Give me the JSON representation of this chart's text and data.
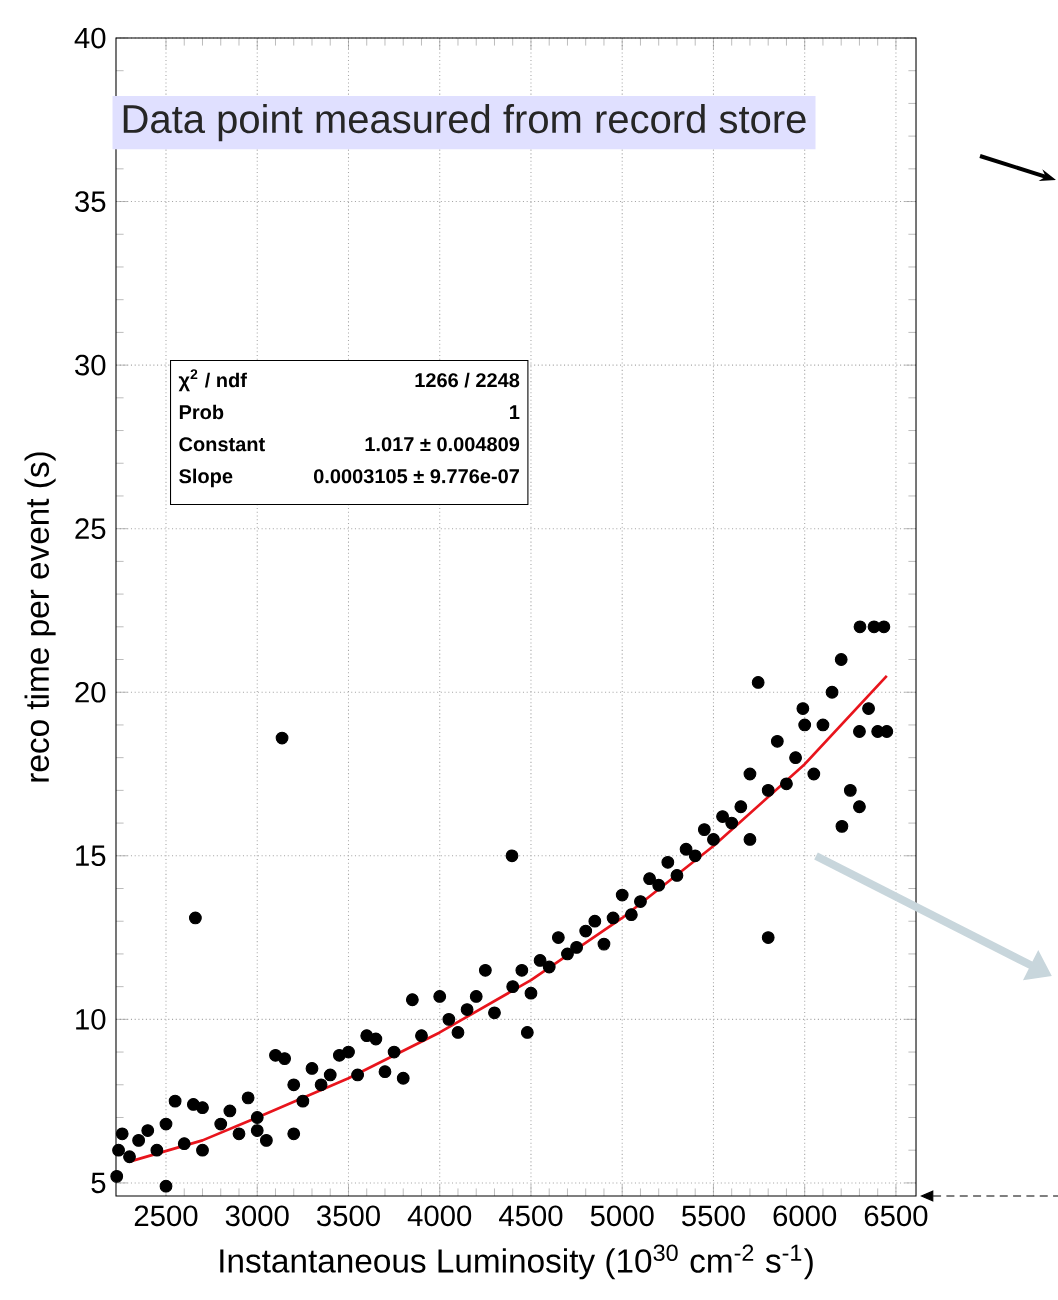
{
  "chart_data": {
    "type": "scatter",
    "xlabel": "Instantaneous Luminosity (10$^{30}$ cm$^{-2}$ s$^{-1}$)",
    "ylabel": "reco time per event (s)",
    "annotations": [
      "Data point measured from record store",
      "χ$^{2}$ / ndf",
      "1266 / 2248",
      "Prob",
      "1",
      "Constant",
      "1.017 ± 0.004809",
      "Slope",
      "0.0003105 ± 9.776e-07"
    ],
    "xlim": [
      2226,
      6610
    ],
    "ylim": [
      4.6,
      40
    ],
    "xticks": [
      2500,
      3000,
      3500,
      4000,
      4500,
      5000,
      5500,
      6000,
      6500
    ],
    "yticks": [
      5,
      10,
      15,
      20,
      25,
      30,
      35,
      40
    ],
    "grid": true,
    "series": [
      {
        "type": "scatter",
        "color": "#000000",
        "marker": "circle",
        "x": [
          2230,
          2240,
          2260,
          2300,
          2350,
          2400,
          2450,
          2500,
          2500,
          2550,
          2600,
          2661,
          2650,
          2700,
          2700,
          2800,
          2850,
          2900,
          2950,
          3000,
          3050,
          3000,
          3136,
          3100,
          3150,
          3200,
          3200,
          3250,
          3300,
          3350,
          3400,
          3450,
          3500,
          3550,
          3600,
          3650,
          3700,
          3750,
          3800,
          3850,
          3900,
          4000,
          4050,
          4100,
          4150,
          4200,
          4250,
          4300,
          4396,
          4400,
          4450,
          4500,
          4480,
          4550,
          4600,
          4650,
          4700,
          4750,
          4800,
          4850,
          4900,
          4950,
          5000,
          5050,
          5100,
          5150,
          5200,
          5250,
          5300,
          5350,
          5400,
          5450,
          5500,
          5550,
          5600,
          5650,
          5700,
          5700,
          5745,
          5800,
          5800,
          5850,
          5900,
          5950,
          6000,
          5990,
          6050,
          6204,
          6100,
          6150,
          6200,
          6250,
          6303,
          6380,
          6434,
          6300,
          6350,
          6400,
          6300,
          6450
        ],
        "values": [
          5.2,
          6.0,
          6.5,
          5.8,
          6.3,
          6.6,
          6.0,
          4.9,
          6.8,
          7.5,
          6.2,
          13.1,
          7.4,
          7.3,
          6.0,
          6.8,
          7.2,
          6.5,
          7.6,
          7.0,
          6.3,
          6.6,
          18.6,
          8.9,
          8.8,
          8.0,
          6.5,
          7.5,
          8.5,
          8.0,
          8.3,
          8.9,
          9.0,
          8.3,
          9.5,
          9.4,
          8.4,
          9.0,
          8.2,
          10.6,
          9.5,
          10.7,
          10.0,
          9.6,
          10.3,
          10.7,
          11.5,
          10.2,
          15.0,
          11.0,
          11.5,
          10.8,
          9.6,
          11.8,
          11.6,
          12.5,
          12.0,
          12.2,
          12.7,
          13.0,
          12.3,
          13.1,
          13.8,
          13.2,
          13.6,
          14.3,
          14.1,
          14.8,
          14.4,
          15.2,
          15.0,
          15.8,
          15.5,
          16.2,
          16.0,
          16.5,
          15.5,
          17.5,
          20.3,
          12.5,
          17.0,
          18.5,
          17.2,
          18.0,
          19.0,
          19.5,
          17.5,
          15.9,
          19.0,
          20.0,
          21.0,
          17.0,
          22.0,
          22.0,
          22.0,
          18.8,
          19.5,
          18.8,
          16.5,
          18.8
        ]
      },
      {
        "type": "line",
        "color": "#e8141c",
        "marker": "none",
        "x": [
          2300,
          2700,
          3000,
          3500,
          4000,
          4500,
          5000,
          5500,
          6000,
          6450
        ],
        "values": [
          5.65,
          6.3,
          7.0,
          8.2,
          9.6,
          11.2,
          13.1,
          15.3,
          17.8,
          20.5
        ]
      }
    ]
  }
}
